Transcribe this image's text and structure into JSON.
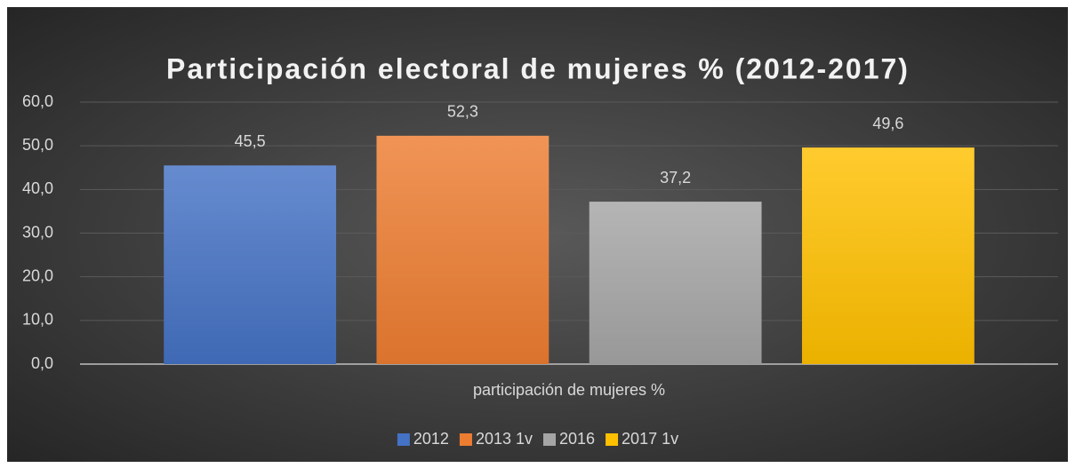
{
  "chart_data": {
    "type": "bar",
    "title": "Participación electoral de mujeres % (2012-2017)",
    "categories": [
      "participación de mujeres %"
    ],
    "series": [
      {
        "name": "2012",
        "color": "#4472c4",
        "values": [
          45.5
        ],
        "value_labels": [
          "45,5"
        ]
      },
      {
        "name": "2013 1v",
        "color": "#ed7d31",
        "values": [
          52.3
        ],
        "value_labels": [
          "52,3"
        ]
      },
      {
        "name": "2016",
        "color": "#a5a5a5",
        "values": [
          37.2
        ],
        "value_labels": [
          "37,2"
        ]
      },
      {
        "name": "2017 1v",
        "color": "#ffc000",
        "values": [
          49.6
        ],
        "value_labels": [
          "49,6"
        ]
      }
    ],
    "ylim": [
      0,
      60
    ],
    "yticks": [
      {
        "value": 0,
        "label": "0,0"
      },
      {
        "value": 10,
        "label": "10,0"
      },
      {
        "value": 20,
        "label": "20,0"
      },
      {
        "value": 30,
        "label": "30,0"
      },
      {
        "value": 40,
        "label": "40,0"
      },
      {
        "value": 50,
        "label": "50,0"
      },
      {
        "value": 60,
        "label": "60,0"
      }
    ],
    "grid": true,
    "legend": "bottom"
  }
}
